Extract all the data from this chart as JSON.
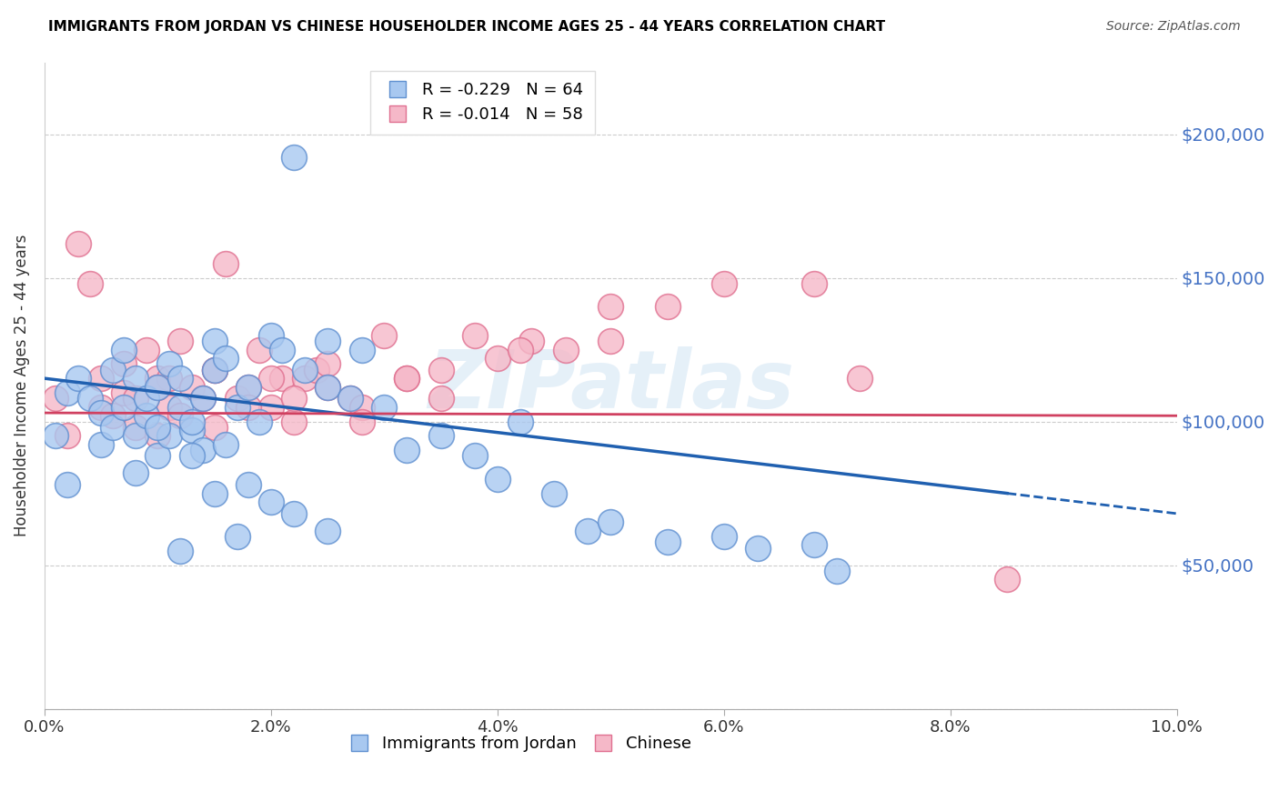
{
  "title": "IMMIGRANTS FROM JORDAN VS CHINESE HOUSEHOLDER INCOME AGES 25 - 44 YEARS CORRELATION CHART",
  "source": "Source: ZipAtlas.com",
  "ylabel": "Householder Income Ages 25 - 44 years",
  "xmin": 0.0,
  "xmax": 0.1,
  "ymin": 0,
  "ymax": 225000,
  "yticks": [
    0,
    50000,
    100000,
    150000,
    200000
  ],
  "ytick_labels": [
    "",
    "$50,000",
    "$100,000",
    "$150,000",
    "$200,000"
  ],
  "xticks": [
    0.0,
    0.02,
    0.04,
    0.06,
    0.08,
    0.1
  ],
  "xtick_labels": [
    "0.0%",
    "2.0%",
    "4.0%",
    "6.0%",
    "8.0%",
    "10.0%"
  ],
  "jordan_color": "#a8c8f0",
  "chinese_color": "#f5b8c8",
  "jordan_edge": "#6090d0",
  "chinese_edge": "#e07090",
  "trend_jordan_color": "#2060b0",
  "trend_chinese_color": "#d04060",
  "legend_jordan_R": "R = -0.229",
  "legend_jordan_N": "N = 64",
  "legend_chinese_R": "R = -0.014",
  "legend_chinese_N": "N = 58",
  "watermark": "ZIPatlas",
  "jordan_trend_x0": 0.0,
  "jordan_trend_y0": 115000,
  "jordan_trend_x1": 0.085,
  "jordan_trend_y1": 75000,
  "chinese_trend_x0": 0.0,
  "chinese_trend_y0": 103000,
  "chinese_trend_x1": 0.1,
  "chinese_trend_y1": 102000,
  "jordan_x": [
    0.001,
    0.002,
    0.002,
    0.003,
    0.004,
    0.005,
    0.005,
    0.006,
    0.006,
    0.007,
    0.007,
    0.008,
    0.008,
    0.009,
    0.009,
    0.01,
    0.01,
    0.011,
    0.011,
    0.012,
    0.012,
    0.013,
    0.013,
    0.014,
    0.014,
    0.015,
    0.015,
    0.016,
    0.017,
    0.018,
    0.019,
    0.02,
    0.021,
    0.022,
    0.023,
    0.025,
    0.025,
    0.027,
    0.028,
    0.03,
    0.032,
    0.035,
    0.038,
    0.04,
    0.042,
    0.045,
    0.048,
    0.05,
    0.055,
    0.06,
    0.063,
    0.068,
    0.07,
    0.015,
    0.008,
    0.01,
    0.013,
    0.016,
    0.018,
    0.02,
    0.022,
    0.025,
    0.012,
    0.017
  ],
  "jordan_y": [
    95000,
    110000,
    78000,
    115000,
    108000,
    103000,
    92000,
    118000,
    98000,
    125000,
    105000,
    95000,
    115000,
    102000,
    108000,
    112000,
    88000,
    120000,
    95000,
    105000,
    115000,
    97000,
    100000,
    108000,
    90000,
    118000,
    128000,
    122000,
    105000,
    112000,
    100000,
    130000,
    125000,
    192000,
    118000,
    128000,
    112000,
    108000,
    125000,
    105000,
    90000,
    95000,
    88000,
    80000,
    100000,
    75000,
    62000,
    65000,
    58000,
    60000,
    56000,
    57000,
    48000,
    75000,
    82000,
    98000,
    88000,
    92000,
    78000,
    72000,
    68000,
    62000,
    55000,
    60000
  ],
  "chinese_x": [
    0.001,
    0.002,
    0.003,
    0.004,
    0.005,
    0.005,
    0.006,
    0.007,
    0.007,
    0.008,
    0.008,
    0.009,
    0.01,
    0.01,
    0.011,
    0.011,
    0.012,
    0.013,
    0.014,
    0.015,
    0.015,
    0.016,
    0.017,
    0.018,
    0.019,
    0.02,
    0.021,
    0.022,
    0.023,
    0.024,
    0.025,
    0.027,
    0.028,
    0.03,
    0.032,
    0.035,
    0.038,
    0.04,
    0.043,
    0.046,
    0.05,
    0.055,
    0.06,
    0.01,
    0.012,
    0.015,
    0.018,
    0.02,
    0.022,
    0.025,
    0.028,
    0.032,
    0.035,
    0.042,
    0.05,
    0.068,
    0.072,
    0.085
  ],
  "chinese_y": [
    108000,
    95000,
    162000,
    148000,
    105000,
    115000,
    102000,
    110000,
    120000,
    98000,
    108000,
    125000,
    115000,
    95000,
    105000,
    115000,
    102000,
    112000,
    108000,
    118000,
    98000,
    155000,
    108000,
    112000,
    125000,
    105000,
    115000,
    100000,
    115000,
    118000,
    120000,
    108000,
    105000,
    130000,
    115000,
    118000,
    130000,
    122000,
    128000,
    125000,
    128000,
    140000,
    148000,
    112000,
    128000,
    118000,
    105000,
    115000,
    108000,
    112000,
    100000,
    115000,
    108000,
    125000,
    140000,
    148000,
    115000,
    45000
  ]
}
